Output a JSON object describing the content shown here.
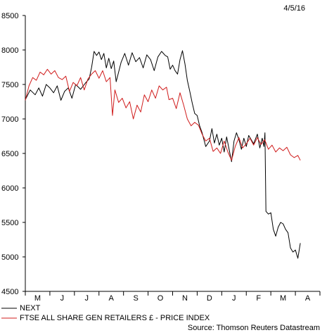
{
  "chart_data": {
    "type": "line",
    "date_label": "4/5/16",
    "source": "Source: Thomson Reuters Datastream",
    "y_ticks": [
      4500,
      5000,
      5500,
      6000,
      6500,
      7000,
      7500,
      8000,
      8500
    ],
    "ylim": [
      4500,
      8500
    ],
    "xlim": [
      0,
      12
    ],
    "x_categories": [
      "M",
      "J",
      "J",
      "A",
      "S",
      "O",
      "N",
      "D",
      "J",
      "F",
      "M",
      "A"
    ],
    "series": [
      {
        "name": "NEXT",
        "color": "#000000",
        "points": [
          [
            0.0,
            7280
          ],
          [
            0.2,
            7420
          ],
          [
            0.4,
            7350
          ],
          [
            0.55,
            7450
          ],
          [
            0.7,
            7330
          ],
          [
            0.85,
            7500
          ],
          [
            1.0,
            7450
          ],
          [
            1.15,
            7380
          ],
          [
            1.3,
            7480
          ],
          [
            1.45,
            7270
          ],
          [
            1.6,
            7400
          ],
          [
            1.75,
            7450
          ],
          [
            1.9,
            7300
          ],
          [
            2.05,
            7500
          ],
          [
            2.25,
            7430
          ],
          [
            2.45,
            7520
          ],
          [
            2.6,
            7580
          ],
          [
            2.7,
            7750
          ],
          [
            2.8,
            7980
          ],
          [
            2.9,
            7920
          ],
          [
            3.0,
            7970
          ],
          [
            3.1,
            7860
          ],
          [
            3.2,
            7950
          ],
          [
            3.3,
            7740
          ],
          [
            3.4,
            7880
          ],
          [
            3.5,
            7730
          ],
          [
            3.6,
            7840
          ],
          [
            3.7,
            7540
          ],
          [
            3.8,
            7680
          ],
          [
            3.9,
            7820
          ],
          [
            4.05,
            7950
          ],
          [
            4.2,
            7780
          ],
          [
            4.35,
            7960
          ],
          [
            4.5,
            7830
          ],
          [
            4.65,
            7890
          ],
          [
            4.8,
            7740
          ],
          [
            4.95,
            7930
          ],
          [
            5.1,
            7860
          ],
          [
            5.25,
            7700
          ],
          [
            5.4,
            7900
          ],
          [
            5.55,
            7980
          ],
          [
            5.7,
            7920
          ],
          [
            5.8,
            7900
          ],
          [
            5.9,
            7720
          ],
          [
            6.0,
            7780
          ],
          [
            6.1,
            7700
          ],
          [
            6.2,
            7650
          ],
          [
            6.3,
            7860
          ],
          [
            6.4,
            7990
          ],
          [
            6.5,
            7800
          ],
          [
            6.6,
            7560
          ],
          [
            6.7,
            7400
          ],
          [
            6.8,
            7230
          ],
          [
            6.9,
            7080
          ],
          [
            7.0,
            7050
          ],
          [
            7.1,
            6900
          ],
          [
            7.2,
            6800
          ],
          [
            7.35,
            6600
          ],
          [
            7.5,
            6680
          ],
          [
            7.6,
            6860
          ],
          [
            7.7,
            6650
          ],
          [
            7.8,
            6780
          ],
          [
            7.9,
            6620
          ],
          [
            8.0,
            6720
          ],
          [
            8.1,
            6520
          ],
          [
            8.2,
            6740
          ],
          [
            8.3,
            6560
          ],
          [
            8.4,
            6380
          ],
          [
            8.5,
            6680
          ],
          [
            8.6,
            6800
          ],
          [
            8.7,
            6700
          ],
          [
            8.8,
            6560
          ],
          [
            8.9,
            6720
          ],
          [
            9.0,
            6600
          ],
          [
            9.1,
            6760
          ],
          [
            9.2,
            6700
          ],
          [
            9.3,
            6640
          ],
          [
            9.45,
            6780
          ],
          [
            9.55,
            6580
          ],
          [
            9.65,
            6720
          ],
          [
            9.72,
            6600
          ],
          [
            9.76,
            6800
          ],
          [
            9.8,
            5660
          ],
          [
            9.9,
            5620
          ],
          [
            10.0,
            5640
          ],
          [
            10.1,
            5400
          ],
          [
            10.2,
            5300
          ],
          [
            10.3,
            5430
          ],
          [
            10.4,
            5500
          ],
          [
            10.5,
            5480
          ],
          [
            10.6,
            5400
          ],
          [
            10.7,
            5350
          ],
          [
            10.8,
            5130
          ],
          [
            10.9,
            5070
          ],
          [
            11.0,
            5100
          ],
          [
            11.1,
            4980
          ],
          [
            11.2,
            5200
          ]
        ]
      },
      {
        "name": "FTSE ALL SHARE GEN RETAILERS £ - PRICE INDEX",
        "color": "#d01c1c",
        "points": [
          [
            0.0,
            7270
          ],
          [
            0.15,
            7480
          ],
          [
            0.3,
            7600
          ],
          [
            0.45,
            7560
          ],
          [
            0.6,
            7680
          ],
          [
            0.75,
            7640
          ],
          [
            0.9,
            7720
          ],
          [
            1.05,
            7650
          ],
          [
            1.2,
            7700
          ],
          [
            1.35,
            7600
          ],
          [
            1.5,
            7570
          ],
          [
            1.65,
            7620
          ],
          [
            1.8,
            7400
          ],
          [
            1.95,
            7530
          ],
          [
            2.1,
            7480
          ],
          [
            2.25,
            7600
          ],
          [
            2.4,
            7420
          ],
          [
            2.55,
            7580
          ],
          [
            2.7,
            7650
          ],
          [
            2.85,
            7700
          ],
          [
            3.0,
            7590
          ],
          [
            3.15,
            7700
          ],
          [
            3.3,
            7540
          ],
          [
            3.45,
            7600
          ],
          [
            3.55,
            7050
          ],
          [
            3.65,
            7420
          ],
          [
            3.8,
            7240
          ],
          [
            3.95,
            7300
          ],
          [
            4.1,
            7160
          ],
          [
            4.25,
            7250
          ],
          [
            4.4,
            7000
          ],
          [
            4.55,
            7200
          ],
          [
            4.7,
            7100
          ],
          [
            4.85,
            7350
          ],
          [
            5.0,
            7250
          ],
          [
            5.15,
            7420
          ],
          [
            5.3,
            7300
          ],
          [
            5.45,
            7480
          ],
          [
            5.6,
            7420
          ],
          [
            5.75,
            7460
          ],
          [
            5.85,
            7280
          ],
          [
            6.0,
            7300
          ],
          [
            6.15,
            7150
          ],
          [
            6.3,
            7380
          ],
          [
            6.45,
            7200
          ],
          [
            6.6,
            7000
          ],
          [
            6.75,
            6900
          ],
          [
            6.9,
            6950
          ],
          [
            7.05,
            6910
          ],
          [
            7.2,
            6780
          ],
          [
            7.35,
            6680
          ],
          [
            7.5,
            6720
          ],
          [
            7.65,
            6530
          ],
          [
            7.8,
            6580
          ],
          [
            7.95,
            6500
          ],
          [
            8.1,
            6680
          ],
          [
            8.25,
            6520
          ],
          [
            8.4,
            6400
          ],
          [
            8.55,
            6600
          ],
          [
            8.7,
            6730
          ],
          [
            8.85,
            6580
          ],
          [
            9.0,
            6640
          ],
          [
            9.15,
            6720
          ],
          [
            9.3,
            6620
          ],
          [
            9.45,
            6730
          ],
          [
            9.6,
            6630
          ],
          [
            9.75,
            6700
          ],
          [
            9.9,
            6560
          ],
          [
            10.05,
            6620
          ],
          [
            10.2,
            6520
          ],
          [
            10.35,
            6580
          ],
          [
            10.5,
            6540
          ],
          [
            10.65,
            6590
          ],
          [
            10.8,
            6480
          ],
          [
            10.95,
            6440
          ],
          [
            11.1,
            6470
          ],
          [
            11.2,
            6400
          ]
        ]
      }
    ]
  }
}
